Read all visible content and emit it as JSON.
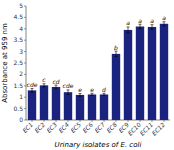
{
  "chart_data": {
    "type": "bar",
    "categories": [
      "EC1",
      "EC2",
      "EC3",
      "EC4",
      "EC5",
      "EC6",
      "EC7",
      "EC8",
      "EC9",
      "EC10",
      "EC11",
      "EC12"
    ],
    "values": [
      1.3,
      1.52,
      1.45,
      1.22,
      1.1,
      1.12,
      1.12,
      2.9,
      3.95,
      4.1,
      4.08,
      4.22
    ],
    "errors": [
      0.08,
      0.07,
      0.08,
      0.1,
      0.06,
      0.05,
      0.05,
      0.12,
      0.13,
      0.1,
      0.1,
      0.09
    ],
    "annotations": [
      "cde",
      "c",
      "cd",
      "cde",
      "e",
      "e",
      "d",
      "b",
      "a",
      "a",
      "a",
      "a"
    ],
    "color": "#1a237e",
    "ylabel": "Absorbance at 959 nm",
    "xlabel": "Urinary isolates of E. coli",
    "ylim": [
      0,
      5
    ],
    "yticks": [
      0,
      0.5,
      1,
      1.5,
      2,
      2.5,
      3,
      3.5,
      4,
      4.5,
      5
    ],
    "grid": false
  }
}
